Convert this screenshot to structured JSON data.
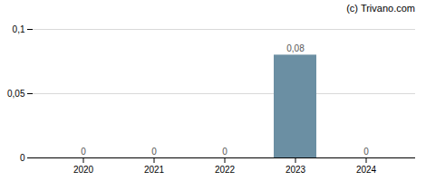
{
  "chart_data": {
    "type": "bar",
    "categories": [
      "2020",
      "2021",
      "2022",
      "2023",
      "2024"
    ],
    "values": [
      0,
      0,
      0,
      0.08,
      0
    ],
    "value_labels": [
      "0",
      "0",
      "0",
      "0,08",
      "0"
    ],
    "data_labels": true,
    "color": "#6b8fa3",
    "ylim": [
      0,
      0.1
    ],
    "yticks": [
      0,
      {
        "value": 0.05,
        "label": "0,05"
      },
      {
        "value": 0.1,
        "label": "0,1"
      }
    ],
    "grid": true,
    "annotations": [
      "(c) Trivano.com"
    ]
  }
}
